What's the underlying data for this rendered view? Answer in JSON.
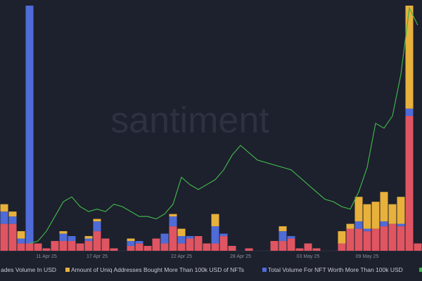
{
  "chart_data": {
    "type": "bar",
    "stacked": true,
    "watermark": "santiment",
    "categories": [
      null,
      null,
      null,
      null,
      null,
      "11 Apr 25",
      null,
      null,
      null,
      null,
      null,
      "17 Apr 25",
      null,
      null,
      null,
      null,
      null,
      null,
      null,
      null,
      null,
      "22 Apr 25",
      null,
      null,
      null,
      null,
      null,
      null,
      "28 Apr 25",
      null,
      null,
      null,
      null,
      null,
      null,
      null,
      "03 May 25",
      null,
      null,
      null,
      null,
      null,
      null,
      "09 May 25",
      null,
      null,
      null,
      null,
      null,
      null
    ],
    "ylim": [
      0,
      100
    ],
    "series": [
      {
        "name": "ades Volume In USD",
        "color": "#e05562",
        "type": "bar",
        "values": [
          11,
          11,
          3,
          3,
          3,
          1,
          4,
          4,
          4,
          3,
          4,
          8,
          5,
          1,
          0,
          2,
          3,
          2,
          5,
          3,
          10,
          3,
          5,
          6,
          3,
          3,
          6,
          2,
          0,
          1,
          0,
          0,
          4,
          4,
          5,
          1,
          3,
          1,
          0,
          0,
          3,
          9,
          9,
          8,
          9,
          10,
          11,
          10,
          55,
          3
        ]
      },
      {
        "name": "Total Volume For NFT Worth More Than 100k USD",
        "color": "#4e6bd8",
        "type": "bar",
        "values": [
          5,
          3,
          2,
          97,
          0,
          0,
          0,
          3,
          2,
          0,
          1,
          4,
          0,
          0,
          0,
          2,
          1,
          0,
          0,
          4,
          4,
          3,
          1,
          0,
          0,
          7,
          1,
          0,
          0,
          0,
          0,
          0,
          0,
          4,
          1,
          0,
          0,
          0,
          0,
          0,
          0,
          0,
          3,
          1,
          0,
          2,
          0,
          1,
          3,
          0
        ]
      },
      {
        "name": "Amount of Uniq Addresses Bought More Than 100k USD of NFTs",
        "color": "#e8b13c",
        "type": "bar",
        "values": [
          3,
          2,
          3,
          0,
          0,
          0,
          0,
          1,
          0,
          0,
          1,
          1,
          0,
          0,
          0,
          1,
          0,
          0,
          0,
          0,
          1,
          3,
          0,
          0,
          0,
          5,
          0,
          0,
          0,
          0,
          0,
          0,
          0,
          2,
          0,
          0,
          0,
          0,
          0,
          0,
          5,
          2,
          10,
          10,
          11,
          12,
          8,
          11,
          42,
          0
        ]
      },
      {
        "color": "#3fb24a",
        "type": "line",
        "values": [
          null,
          null,
          null,
          3,
          4,
          8,
          14,
          20,
          22,
          18,
          16,
          17,
          16,
          19,
          18,
          16,
          14,
          14,
          13,
          15,
          19,
          30,
          27,
          25,
          27,
          29,
          33,
          39,
          43,
          40,
          37,
          36,
          35,
          34,
          33,
          30,
          27,
          24,
          21,
          20,
          18,
          17,
          24,
          34,
          52,
          50,
          55,
          72,
          99,
          92
        ]
      }
    ]
  }
}
